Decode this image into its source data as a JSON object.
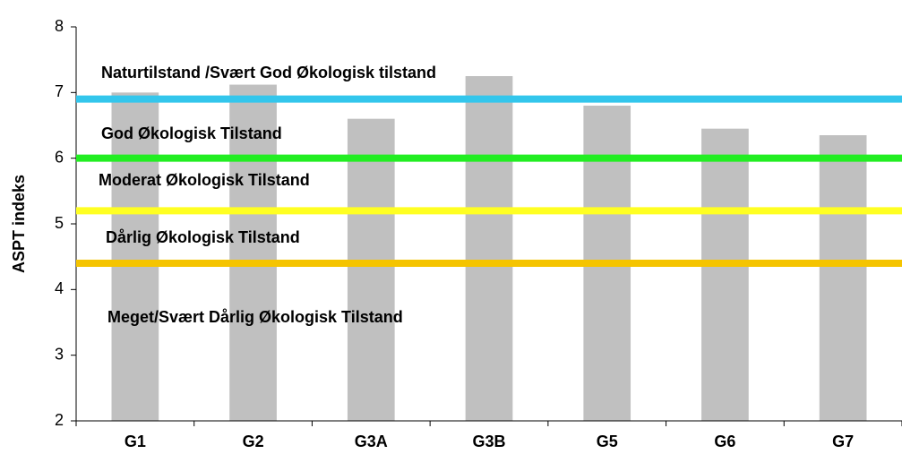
{
  "chart_data": {
    "type": "bar",
    "categories": [
      "G1",
      "G2",
      "G3A",
      "G3B",
      "G5",
      "G6",
      "G7"
    ],
    "values": [
      7.0,
      7.12,
      6.6,
      7.25,
      6.8,
      6.45,
      6.35
    ],
    "color": "#c0c0c0",
    "y_label": "ASPT indeks",
    "ylim": [
      2,
      8
    ],
    "yticks": [
      2,
      3,
      4,
      5,
      6,
      7,
      8
    ],
    "grid": false,
    "thresholds": [
      {
        "value": 6.9,
        "color": "#33c6ec"
      },
      {
        "value": 6.0,
        "color": "#22ee22"
      },
      {
        "value": 5.2,
        "color": "#ffff22"
      },
      {
        "value": 4.4,
        "color": "#f5c400"
      }
    ],
    "annotations": [
      "Naturtilstand /Svært God Økologisk tilstand",
      "God Økologisk Tilstand",
      "Moderat Økologisk Tilstand",
      "Dårlig Økologisk Tilstand",
      "Meget/Svært Dårlig Økologisk Tilstand"
    ]
  }
}
